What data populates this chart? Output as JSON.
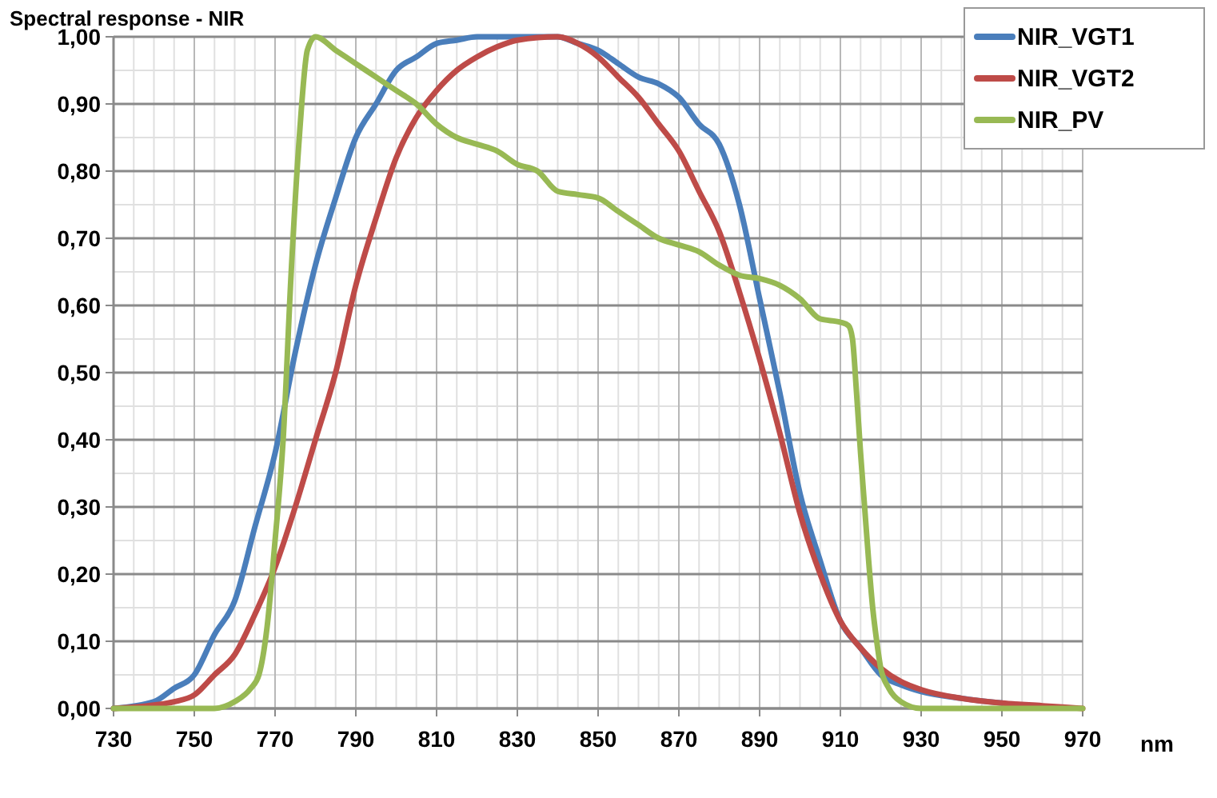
{
  "chart_data": {
    "type": "line",
    "title": "Spectral response - NIR",
    "xlabel": "nm",
    "xlim": [
      730,
      970
    ],
    "xticks": [
      730,
      750,
      770,
      790,
      810,
      830,
      850,
      870,
      890,
      910,
      930,
      950,
      970
    ],
    "ylim": [
      0,
      1
    ],
    "yticks": [
      {
        "value": 0,
        "label": "0,00"
      },
      {
        "value": 0.1,
        "label": "0,10"
      },
      {
        "value": 0.2,
        "label": "0,20"
      },
      {
        "value": 0.3,
        "label": "0,30"
      },
      {
        "value": 0.4,
        "label": "0,40"
      },
      {
        "value": 0.5,
        "label": "0,50"
      },
      {
        "value": 0.6,
        "label": "0,60"
      },
      {
        "value": 0.7,
        "label": "0,70"
      },
      {
        "value": 0.8,
        "label": "0,80"
      },
      {
        "value": 0.9,
        "label": "0,90"
      },
      {
        "value": 1,
        "label": "1,00"
      }
    ],
    "grid": true,
    "legend": "top right",
    "marker": "none",
    "line_style": "solid",
    "series": [
      {
        "name": "NIR_VGT1",
        "color": "#4a7ebb",
        "x": [
          730,
          740,
          745,
          750,
          755,
          760,
          765,
          770,
          775,
          780,
          785,
          790,
          795,
          800,
          805,
          810,
          815,
          820,
          840,
          845,
          850,
          855,
          860,
          865,
          870,
          875,
          880,
          885,
          890,
          895,
          900,
          905,
          910,
          915,
          920,
          925,
          930,
          940,
          950
        ],
        "values": [
          0,
          0.01,
          0.03,
          0.05,
          0.11,
          0.16,
          0.27,
          0.38,
          0.53,
          0.66,
          0.76,
          0.85,
          0.9,
          0.95,
          0.97,
          0.99,
          0.995,
          1,
          1,
          0.99,
          0.98,
          0.96,
          0.94,
          0.93,
          0.91,
          0.87,
          0.84,
          0.75,
          0.61,
          0.47,
          0.32,
          0.22,
          0.13,
          0.09,
          0.05,
          0.035,
          0.025,
          0.015,
          0.008
        ]
      },
      {
        "name": "NIR_VGT2",
        "color": "#be4b48",
        "x": [
          730,
          740,
          745,
          750,
          755,
          760,
          765,
          770,
          775,
          780,
          785,
          790,
          795,
          800,
          805,
          810,
          815,
          820,
          825,
          830,
          840,
          845,
          850,
          855,
          860,
          865,
          870,
          875,
          880,
          885,
          890,
          895,
          900,
          905,
          910,
          915,
          920,
          925,
          930,
          940,
          950,
          960,
          970
        ],
        "values": [
          0,
          0.005,
          0.01,
          0.02,
          0.05,
          0.08,
          0.14,
          0.21,
          0.3,
          0.4,
          0.5,
          0.63,
          0.73,
          0.82,
          0.88,
          0.92,
          0.95,
          0.97,
          0.985,
          0.995,
          1,
          0.99,
          0.97,
          0.94,
          0.91,
          0.87,
          0.83,
          0.77,
          0.71,
          0.62,
          0.52,
          0.41,
          0.29,
          0.2,
          0.13,
          0.09,
          0.06,
          0.04,
          0.028,
          0.015,
          0.008,
          0.004,
          0
        ]
      },
      {
        "name": "NIR_PV",
        "color": "#98b954",
        "x": [
          730,
          755,
          760,
          764,
          766,
          768,
          770,
          772,
          774,
          776,
          778,
          780,
          785,
          790,
          795,
          800,
          805,
          810,
          815,
          820,
          825,
          830,
          835,
          840,
          845,
          850,
          855,
          860,
          865,
          870,
          875,
          880,
          885,
          890,
          895,
          900,
          905,
          910,
          912,
          913,
          914,
          915,
          916,
          917,
          918,
          919,
          920,
          922,
          925,
          930,
          970
        ],
        "values": [
          0,
          0,
          0.01,
          0.03,
          0.05,
          0.12,
          0.25,
          0.4,
          0.65,
          0.85,
          0.98,
          1,
          0.98,
          0.96,
          0.94,
          0.92,
          0.9,
          0.87,
          0.85,
          0.84,
          0.83,
          0.81,
          0.8,
          0.77,
          0.765,
          0.76,
          0.74,
          0.72,
          0.7,
          0.69,
          0.68,
          0.66,
          0.645,
          0.64,
          0.63,
          0.61,
          0.58,
          0.575,
          0.57,
          0.55,
          0.47,
          0.38,
          0.3,
          0.22,
          0.15,
          0.1,
          0.06,
          0.03,
          0.01,
          0,
          0
        ]
      }
    ]
  }
}
